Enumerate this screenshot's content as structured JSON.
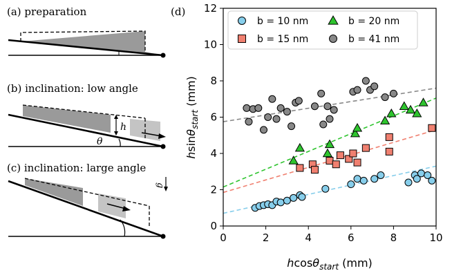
{
  "panels": {
    "a": {
      "label": "(a) preparation"
    },
    "b": {
      "label": "(b) inclination: low angle",
      "h_symbol": "h",
      "theta_symbol": "θ"
    },
    "c": {
      "label": "(c) inclination: large angle",
      "g_symbol": "g"
    },
    "d": {
      "label": "(d)"
    }
  },
  "colors": {
    "b10": "#87ceeb",
    "b15": "#f08070",
    "b20": "#2ec42e",
    "b41": "#888888",
    "fit10": "#87ceeb",
    "fit15": "#f08070",
    "fit20": "#2ec42e",
    "fit41": "#888888",
    "dark_gray": "#9a9a9a",
    "light_gray": "#c4c4c4"
  },
  "chart_data": {
    "type": "scatter",
    "xlabel": "hcosθstart (mm)",
    "ylabel": "hsinθstart (mm)",
    "xlim": [
      0,
      10
    ],
    "ylim": [
      0,
      12
    ],
    "xticks": [
      0,
      2,
      4,
      6,
      8,
      10
    ],
    "yticks": [
      0,
      2,
      4,
      6,
      8,
      10,
      12
    ],
    "legend_position": "top",
    "series": [
      {
        "name": "b = 10 nm",
        "marker": "circle",
        "color_key": "b10",
        "points": [
          [
            1.5,
            1.0
          ],
          [
            1.7,
            1.1
          ],
          [
            1.9,
            1.15
          ],
          [
            2.1,
            1.2
          ],
          [
            2.3,
            1.15
          ],
          [
            2.5,
            1.35
          ],
          [
            2.7,
            1.3
          ],
          [
            3.0,
            1.4
          ],
          [
            3.3,
            1.55
          ],
          [
            3.6,
            1.7
          ],
          [
            3.7,
            1.6
          ],
          [
            4.8,
            2.05
          ],
          [
            6.0,
            2.3
          ],
          [
            6.3,
            2.6
          ],
          [
            6.6,
            2.5
          ],
          [
            7.1,
            2.6
          ],
          [
            7.4,
            2.8
          ],
          [
            8.7,
            2.4
          ],
          [
            9.0,
            2.8
          ],
          [
            9.1,
            2.6
          ],
          [
            9.3,
            2.9
          ],
          [
            9.6,
            2.8
          ],
          [
            9.8,
            2.5
          ]
        ],
        "fit": [
          [
            0,
            0.7
          ],
          [
            10,
            3.3
          ]
        ]
      },
      {
        "name": "b = 15 nm",
        "marker": "square",
        "color_key": "b15",
        "points": [
          [
            3.6,
            3.2
          ],
          [
            4.2,
            3.4
          ],
          [
            4.3,
            3.1
          ],
          [
            5.0,
            3.6
          ],
          [
            5.3,
            3.4
          ],
          [
            5.5,
            3.9
          ],
          [
            5.9,
            3.7
          ],
          [
            6.1,
            4.0
          ],
          [
            6.3,
            3.5
          ],
          [
            6.7,
            4.3
          ],
          [
            7.8,
            4.1
          ],
          [
            7.8,
            4.9
          ],
          [
            9.8,
            5.4
          ]
        ],
        "fit": [
          [
            0,
            1.85
          ],
          [
            10,
            5.3
          ]
        ]
      },
      {
        "name": "b = 20 nm",
        "marker": "triangle",
        "color_key": "b20",
        "points": [
          [
            3.3,
            3.6
          ],
          [
            3.6,
            4.3
          ],
          [
            4.9,
            4.0
          ],
          [
            5.0,
            4.5
          ],
          [
            6.2,
            5.1
          ],
          [
            6.3,
            5.4
          ],
          [
            7.6,
            5.8
          ],
          [
            7.9,
            6.2
          ],
          [
            8.5,
            6.6
          ],
          [
            8.8,
            6.4
          ],
          [
            9.1,
            6.2
          ],
          [
            9.4,
            6.8
          ]
        ],
        "fit": [
          [
            0,
            2.15
          ],
          [
            10,
            7.05
          ]
        ]
      },
      {
        "name": "b = 41 nm",
        "marker": "circle",
        "color_key": "b41",
        "points": [
          [
            1.1,
            6.5
          ],
          [
            1.2,
            5.75
          ],
          [
            1.4,
            6.45
          ],
          [
            1.65,
            6.5
          ],
          [
            1.9,
            5.3
          ],
          [
            2.1,
            6.0
          ],
          [
            2.3,
            7.0
          ],
          [
            2.5,
            5.9
          ],
          [
            2.7,
            6.5
          ],
          [
            3.0,
            6.3
          ],
          [
            3.2,
            5.5
          ],
          [
            3.4,
            6.8
          ],
          [
            3.55,
            6.9
          ],
          [
            4.3,
            6.6
          ],
          [
            4.6,
            7.3
          ],
          [
            4.7,
            5.6
          ],
          [
            4.9,
            6.6
          ],
          [
            5.0,
            5.9
          ],
          [
            5.2,
            6.4
          ],
          [
            6.1,
            7.4
          ],
          [
            6.3,
            7.5
          ],
          [
            6.7,
            8.0
          ],
          [
            6.9,
            7.5
          ],
          [
            7.1,
            7.7
          ],
          [
            7.6,
            7.1
          ],
          [
            8.0,
            7.3
          ]
        ],
        "fit": [
          [
            0,
            5.75
          ],
          [
            10,
            7.6
          ]
        ]
      }
    ],
    "legend": [
      {
        "label": "b = 10 nm",
        "series": 0
      },
      {
        "label": "b = 20 nm",
        "series": 2
      },
      {
        "label": "b = 15 nm",
        "series": 1
      },
      {
        "label": "b = 41 nm",
        "series": 3
      }
    ]
  }
}
